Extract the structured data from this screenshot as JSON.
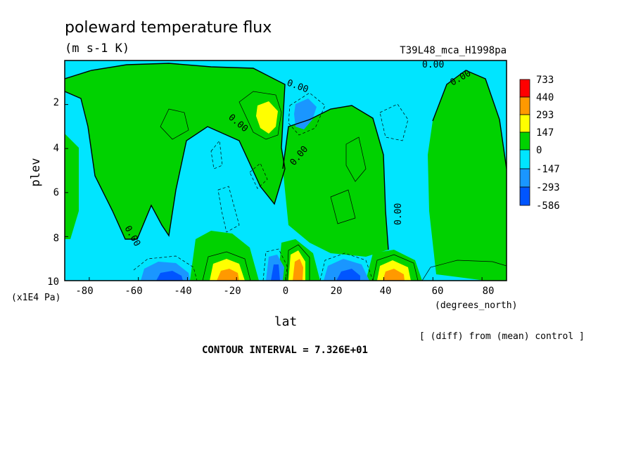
{
  "colors": {
    "bg": "#ffffff",
    "levels": [
      "#0055ff",
      "#1a96ff",
      "#00e5ff",
      "#00d200",
      "#ffff00",
      "#ff9900",
      "#ff0000"
    ]
  },
  "chart_data": {
    "type": "contour",
    "title": "poleward temperature flux",
    "units": "(m s-1 K)",
    "experiment_label": "T39L48_mca_H1998pa",
    "xlabel": "lat",
    "x_units": "(degrees_north)",
    "ylabel": "plev",
    "y_units": "(x1E4 Pa)",
    "xlim": [
      -90,
      90
    ],
    "ylim": [
      10,
      0
    ],
    "x_ticks": [
      -80,
      -60,
      -40,
      -20,
      0,
      20,
      40,
      60,
      80
    ],
    "y_ticks": [
      2,
      4,
      6,
      8,
      10
    ],
    "legend_levels": [
      "733",
      "440",
      "293",
      "147",
      "0",
      "-147",
      "-293",
      "-586"
    ],
    "contour_labels": [
      "0.00",
      "0.00",
      "0.00",
      "0.00",
      "0.00",
      "0.00",
      "0.00"
    ],
    "note": "[ (diff) from (mean) control ]",
    "contour_interval": "CONTOUR INTERVAL = 7.326E+01",
    "features": [
      {
        "lat": -8,
        "plev": 3.0,
        "value": 180
      },
      {
        "lat": 8,
        "plev": 3.0,
        "value": -200
      },
      {
        "lat": -44,
        "plev": 9.9,
        "value": -560
      },
      {
        "lat": -24,
        "plev": 9.7,
        "value": 450
      },
      {
        "lat": -4,
        "plev": 9.6,
        "value": -500
      },
      {
        "lat": 4,
        "plev": 9.6,
        "value": 600
      },
      {
        "lat": 26,
        "plev": 9.7,
        "value": -480
      },
      {
        "lat": 44,
        "plev": 9.7,
        "value": 480
      }
    ]
  }
}
